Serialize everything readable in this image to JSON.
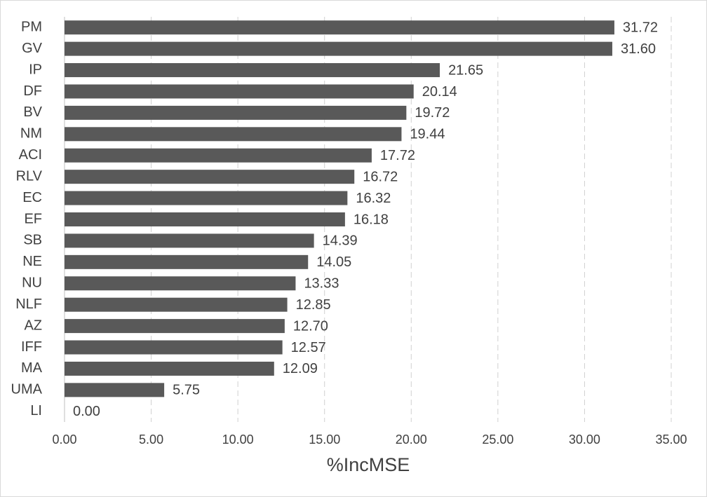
{
  "chart_data": {
    "type": "hbar",
    "x_label": "%IncMSE",
    "categories": [
      "PM",
      "GV",
      "IP",
      "DF",
      "BV",
      "NM",
      "ACI",
      "RLV",
      "EC",
      "EF",
      "SB",
      "NE",
      "NU",
      "NLF",
      "AZ",
      "IFF",
      "MA",
      "UMA",
      "LI"
    ],
    "values": [
      31.72,
      31.6,
      21.65,
      20.14,
      19.72,
      19.44,
      17.72,
      16.72,
      16.32,
      16.18,
      14.39,
      14.05,
      13.33,
      12.85,
      12.7,
      12.57,
      12.09,
      5.75,
      0
    ],
    "value_labels": [
      "31.72",
      "31.60",
      "21.65",
      "20.14",
      "19.72",
      "19.44",
      "17.72",
      "16.72",
      "16.32",
      "16.18",
      "14.39",
      "14.05",
      "13.33",
      "12.85",
      "12.70",
      "12.57",
      "12.09",
      "5.75",
      "0.00"
    ],
    "color": "#595959",
    "xlim": [
      0,
      35
    ],
    "xticks": [
      {
        "value": 0,
        "label": "0.00"
      },
      {
        "value": 5,
        "label": "5.00"
      },
      {
        "value": 10,
        "label": "10.00"
      },
      {
        "value": 15,
        "label": "15.00"
      },
      {
        "value": 20,
        "label": "20.00"
      },
      {
        "value": 25,
        "label": "25.00"
      },
      {
        "value": 30,
        "label": "30.00"
      },
      {
        "value": 35,
        "label": "35.00"
      }
    ],
    "grid": true
  }
}
